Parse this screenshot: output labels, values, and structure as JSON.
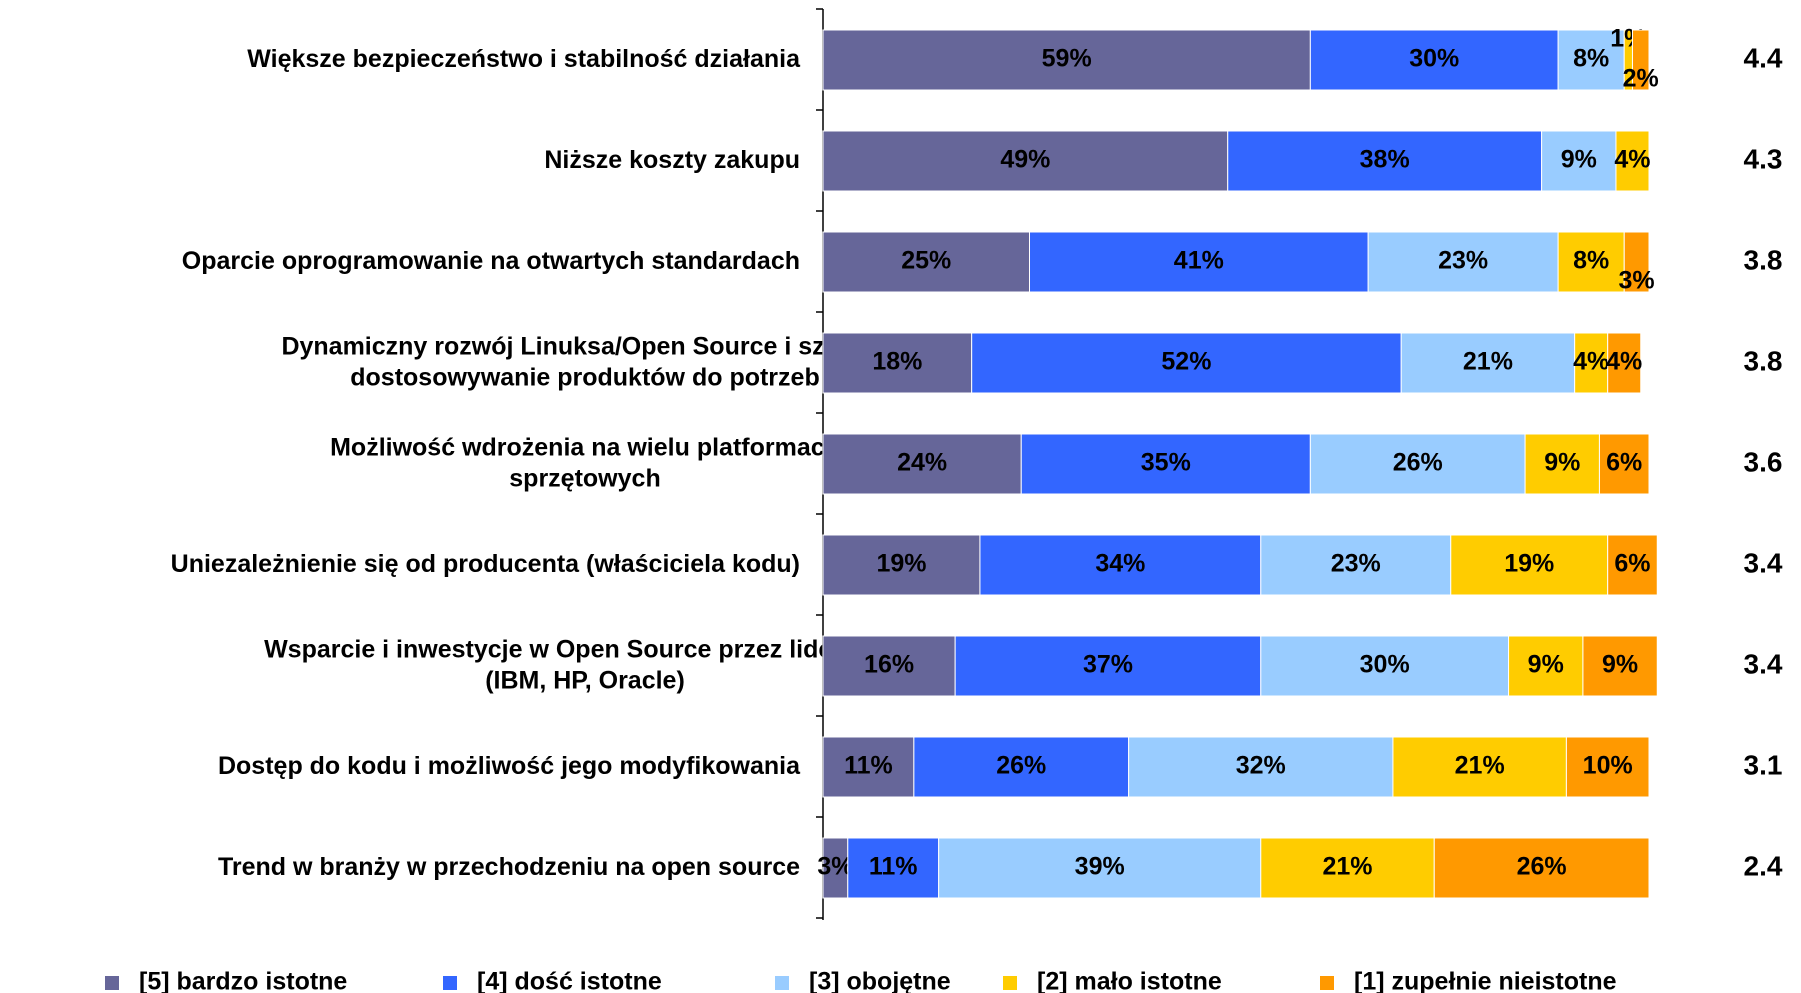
{
  "chart_data": {
    "type": "stacked_barh",
    "categories": [
      "Większe bezpieczeństwo i stabilność działania",
      "Niższe koszty zakupu",
      "Oparcie oprogramowanie na otwartych standardach",
      "Dynamiczny rozwój Linuksa/Open Source i szybkie\ndostosowywanie produktów do potrzeb",
      "Możliwość wdrożenia na wielu platformach\nsprzętowych",
      "Uniezależnienie się od producenta (właściciela kodu)",
      "Wsparcie i inwestycje w Open Source przez liderów IT\n(IBM, HP, Oracle)",
      "Dostęp do kodu i możliwość jego modyfikowania",
      "Trend w branży w przechodzeniu na open source"
    ],
    "series": [
      {
        "name": "[5] bardzo istotne",
        "color": "#666699",
        "values": [
          59,
          49,
          25,
          18,
          24,
          19,
          16,
          11,
          3
        ],
        "value_labels": [
          "59%",
          "49%",
          "25%",
          "18%",
          "24%",
          "19%",
          "16%",
          "11%",
          "3%"
        ]
      },
      {
        "name": "[4] dość istotne",
        "color": "#3366ff",
        "values": [
          30,
          38,
          41,
          52,
          35,
          34,
          37,
          26,
          11
        ],
        "value_labels": [
          "30%",
          "38%",
          "41%",
          "52%",
          "35%",
          "34%",
          "37%",
          "26%",
          "11%"
        ]
      },
      {
        "name": "[3] obojętne",
        "color": "#99ccff",
        "values": [
          8,
          9,
          23,
          21,
          26,
          23,
          30,
          32,
          39
        ],
        "value_labels": [
          "8%",
          "9%",
          "23%",
          "21%",
          "26%",
          "23%",
          "30%",
          "32%",
          "39%"
        ]
      },
      {
        "name": "[2] mało istotne",
        "color": "#ffcc00",
        "values": [
          1,
          4,
          8,
          4,
          9,
          19,
          9,
          21,
          21
        ],
        "value_labels": [
          "1%",
          "4%",
          "8%",
          "4%",
          "9%",
          "19%",
          "9%",
          "21%",
          "21%"
        ]
      },
      {
        "name": "[1] zupełnie nieistotne",
        "color": "#ff9900",
        "values": [
          2,
          null,
          3,
          4,
          6,
          6,
          9,
          10,
          26
        ],
        "value_labels": [
          "2%",
          null,
          "3%",
          "4%",
          "6%",
          "6%",
          "9%",
          "10%",
          "26%"
        ]
      }
    ],
    "scores": [
      4.4,
      4.3,
      3.8,
      3.8,
      3.6,
      3.4,
      3.4,
      3.1,
      2.4
    ],
    "score_color": "#d6213b",
    "xlim": [
      0,
      100
    ]
  }
}
